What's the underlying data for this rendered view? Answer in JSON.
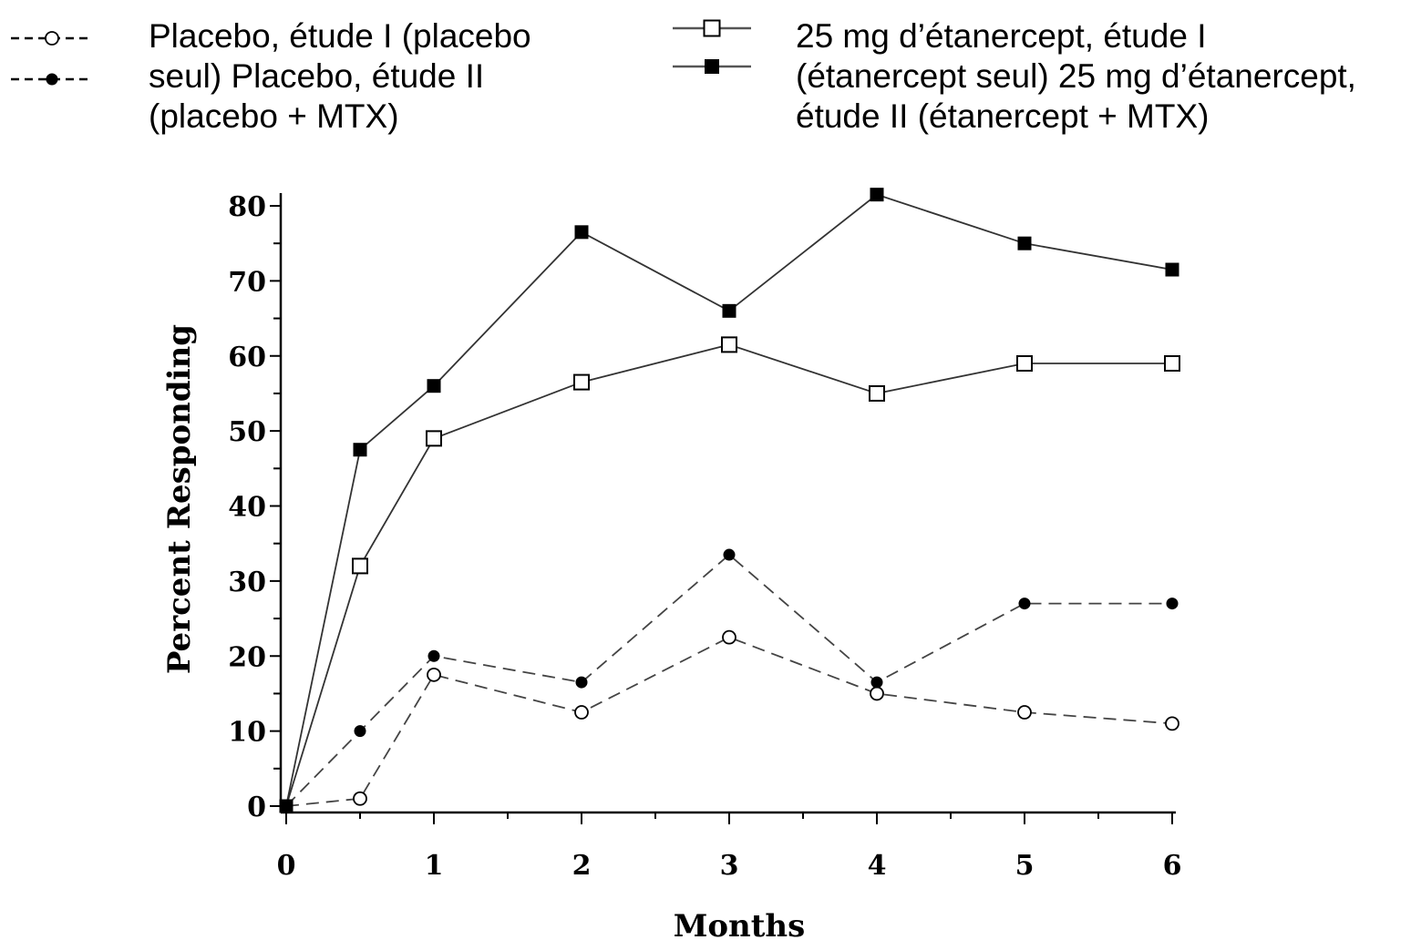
{
  "legend": {
    "left_lines": [
      "Placebo, étude I (placebo",
      "seul) Placebo, étude II",
      "(placebo + MTX)"
    ],
    "right_lines": [
      "25 mg d’étanercept, étude I",
      "(étanercept seul) 25 mg d’étanercept,",
      "étude II (étanercept + MTX)"
    ]
  },
  "chart_data": {
    "type": "line",
    "title": "",
    "xlabel": "Months",
    "ylabel": "Percent Responding",
    "xlim": [
      0,
      6
    ],
    "ylim": [
      0,
      80
    ],
    "x_ticks": [
      0,
      1,
      2,
      3,
      4,
      5,
      6
    ],
    "y_ticks": [
      0,
      10,
      20,
      30,
      40,
      50,
      60,
      70,
      80
    ],
    "grid": false,
    "legend_position": "top",
    "series": [
      {
        "key": "placebo_study1",
        "marker": "circle-open",
        "line": "dashed",
        "color": "#000000",
        "x": [
          0,
          0.5,
          1,
          2,
          3,
          4,
          5,
          6
        ],
        "y": [
          0,
          1,
          17.5,
          12.5,
          22.5,
          15,
          12.5,
          11
        ]
      },
      {
        "key": "placebo_study2",
        "marker": "circle-filled",
        "line": "dashed",
        "color": "#000000",
        "x": [
          0,
          0.5,
          1,
          2,
          3,
          4,
          5,
          6
        ],
        "y": [
          0,
          10,
          20,
          16.5,
          33.5,
          16.5,
          27,
          27
        ]
      },
      {
        "key": "etanercept_study1",
        "marker": "square-open",
        "line": "solid",
        "color": "#000000",
        "x": [
          0,
          0.5,
          1,
          2,
          3,
          4,
          5,
          6
        ],
        "y": [
          0,
          32,
          49,
          56.5,
          61.5,
          55,
          59,
          59
        ]
      },
      {
        "key": "etanercept_study2",
        "marker": "square-filled",
        "line": "solid",
        "color": "#000000",
        "x": [
          0,
          0.5,
          1,
          2,
          3,
          4,
          5,
          6
        ],
        "y": [
          0,
          47.5,
          56,
          76.5,
          66,
          81.5,
          75,
          71.5
        ]
      }
    ]
  }
}
